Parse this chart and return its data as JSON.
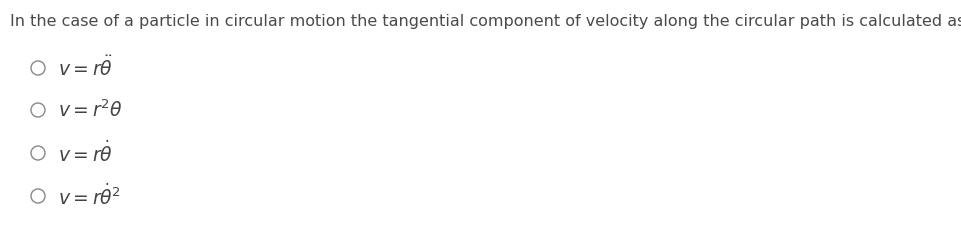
{
  "background_color": "#ffffff",
  "header_text": "In the case of a particle in circular motion the tangential component of velocity along the circular path is calculated as:",
  "header_fontsize": 11.5,
  "header_color": "#4a4a4a",
  "options": [
    {
      "math": "$v = r\\ddot{\\theta}$"
    },
    {
      "math": "$v = r^2\\theta$"
    },
    {
      "math": "$v = r\\dot{\\theta}$"
    },
    {
      "math": "$v = r\\dot{\\theta}^2$"
    }
  ],
  "circle_color": "#888888",
  "text_color": "#444444",
  "math_fontsize": 13.5,
  "fig_width": 9.62,
  "fig_height": 2.42,
  "dpi": 100
}
